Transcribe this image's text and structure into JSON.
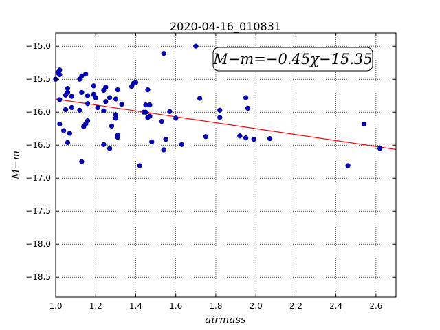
{
  "chart_data": {
    "type": "scatter",
    "title": "2020-04-16_010831",
    "xlabel": "airmass",
    "ylabel": "M−m",
    "annotation": "M−m=−0.45χ−15.35",
    "xlim": [
      1.0,
      2.7
    ],
    "ylim": [
      -18.8,
      -14.8
    ],
    "y_inverted": true,
    "grid": true,
    "x_ticks": [
      1.0,
      1.2,
      1.4,
      1.6,
      1.8,
      2.0,
      2.2,
      2.4,
      2.6
    ],
    "x_tick_labels": [
      "1.0",
      "1.2",
      "1.4",
      "1.6",
      "1.8",
      "2.0",
      "2.2",
      "2.4",
      "2.6"
    ],
    "y_ticks": [
      -15.0,
      -15.5,
      -16.0,
      -16.5,
      -17.0,
      -17.5,
      -18.0,
      -18.5
    ],
    "y_tick_labels": [
      "−15.0",
      "−15.5",
      "−16.0",
      "−16.5",
      "−17.0",
      "−17.5",
      "−18.0",
      "−18.5"
    ],
    "fit": {
      "slope": -0.45,
      "intercept": -15.35,
      "color": "#ff0000"
    },
    "point_color": "#0000cc",
    "points": [
      [
        1.0,
        -15.5
      ],
      [
        1.01,
        -15.4
      ],
      [
        1.02,
        -15.36
      ],
      [
        1.02,
        -15.43
      ],
      [
        1.02,
        -15.81
      ],
      [
        1.02,
        -16.18
      ],
      [
        1.04,
        -16.28
      ],
      [
        1.05,
        -15.74
      ],
      [
        1.05,
        -15.96
      ],
      [
        1.06,
        -15.64
      ],
      [
        1.06,
        -15.7
      ],
      [
        1.06,
        -16.46
      ],
      [
        1.07,
        -16.32
      ],
      [
        1.08,
        -15.76
      ],
      [
        1.08,
        -15.93
      ],
      [
        1.12,
        -15.5
      ],
      [
        1.12,
        -15.97
      ],
      [
        1.13,
        -16.75
      ],
      [
        1.13,
        -15.45
      ],
      [
        1.13,
        -15.7
      ],
      [
        1.14,
        -16.22
      ],
      [
        1.15,
        -15.42
      ],
      [
        1.15,
        -16.18
      ],
      [
        1.16,
        -15.75
      ],
      [
        1.16,
        -15.87
      ],
      [
        1.16,
        -16.13
      ],
      [
        1.19,
        -15.6
      ],
      [
        1.19,
        -15.73
      ],
      [
        1.2,
        -15.78
      ],
      [
        1.21,
        -15.93
      ],
      [
        1.24,
        -15.98
      ],
      [
        1.24,
        -16.49
      ],
      [
        1.24,
        -15.67
      ],
      [
        1.25,
        -15.62
      ],
      [
        1.25,
        -15.84
      ],
      [
        1.27,
        -15.78
      ],
      [
        1.27,
        -16.55
      ],
      [
        1.28,
        -16.21
      ],
      [
        1.3,
        -15.8
      ],
      [
        1.3,
        -16.04
      ],
      [
        1.3,
        -16.09
      ],
      [
        1.31,
        -16.38
      ],
      [
        1.31,
        -15.66
      ],
      [
        1.31,
        -16.35
      ],
      [
        1.33,
        -15.88
      ],
      [
        1.38,
        -15.61
      ],
      [
        1.39,
        -15.56
      ],
      [
        1.4,
        -15.55
      ],
      [
        1.42,
        -16.81
      ],
      [
        1.44,
        -16.0
      ],
      [
        1.45,
        -15.89
      ],
      [
        1.45,
        -16.0
      ],
      [
        1.46,
        -16.08
      ],
      [
        1.46,
        -15.66
      ],
      [
        1.47,
        -15.89
      ],
      [
        1.47,
        -16.06
      ],
      [
        1.48,
        -16.45
      ],
      [
        1.53,
        -16.14
      ],
      [
        1.54,
        -15.11
      ],
      [
        1.54,
        -16.57
      ],
      [
        1.55,
        -16.41
      ],
      [
        1.57,
        -15.99
      ],
      [
        1.6,
        -16.09
      ],
      [
        1.63,
        -16.49
      ],
      [
        1.7,
        -15.0
      ],
      [
        1.72,
        -15.79
      ],
      [
        1.75,
        -16.37
      ],
      [
        1.82,
        -15.97
      ],
      [
        1.82,
        -16.08
      ],
      [
        1.92,
        -16.36
      ],
      [
        1.95,
        -15.78
      ],
      [
        1.95,
        -16.39
      ],
      [
        1.96,
        -15.94
      ],
      [
        1.99,
        -16.41
      ],
      [
        2.07,
        -16.4
      ],
      [
        2.46,
        -16.81
      ],
      [
        2.54,
        -16.18
      ],
      [
        2.62,
        -16.55
      ]
    ]
  }
}
